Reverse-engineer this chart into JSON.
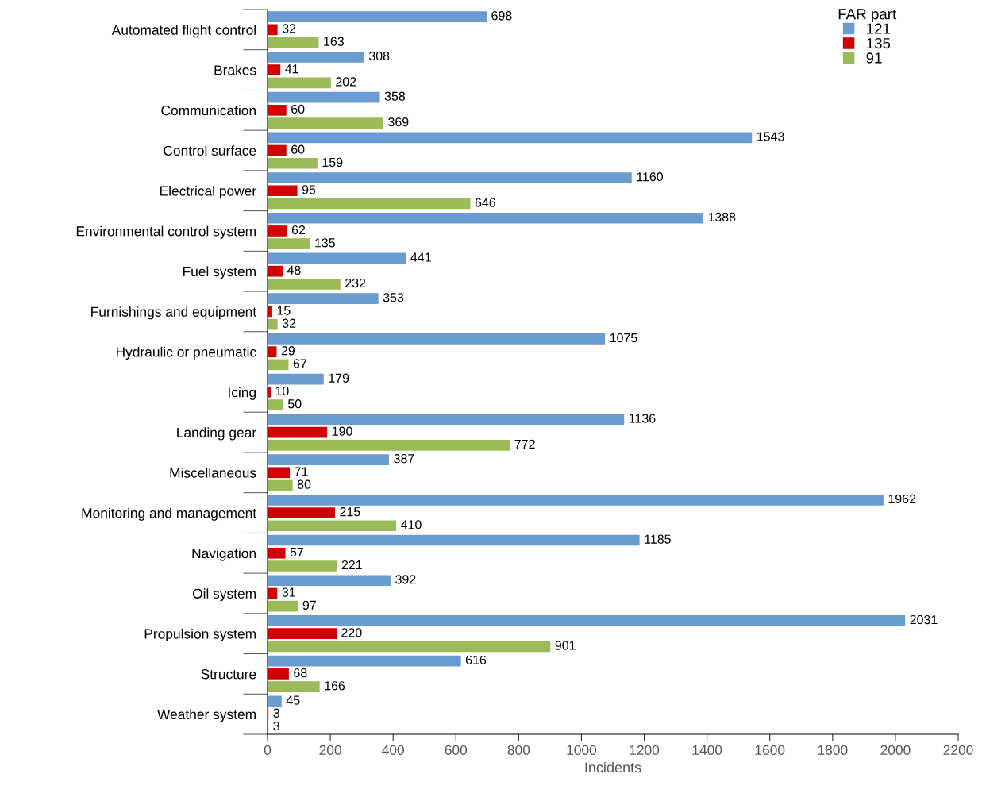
{
  "chart_data": {
    "type": "bar",
    "orientation": "horizontal",
    "xlabel": "Incidents",
    "legend_title": "FAR part",
    "legend": "top right",
    "data_labels": true,
    "grid": false,
    "categories": [
      "Automated flight control",
      "Brakes",
      "Communication",
      "Control surface",
      "Electrical power",
      "Environmental control system",
      "Fuel system",
      "Furnishings and equipment",
      "Hydraulic or pneumatic",
      "Icing",
      "Landing gear",
      "Miscellaneous",
      "Monitoring and management",
      "Navigation",
      "Oil system",
      "Propulsion system",
      "Structure",
      "Weather system"
    ],
    "series": [
      {
        "name": "121",
        "color": "#6a9bd1",
        "values": [
          698,
          308,
          358,
          1543,
          1160,
          1388,
          441,
          353,
          1075,
          179,
          1136,
          387,
          1962,
          1185,
          392,
          2031,
          616,
          45
        ]
      },
      {
        "name": "135",
        "color": "#d00000",
        "values": [
          32,
          41,
          60,
          60,
          95,
          62,
          48,
          15,
          29,
          10,
          190,
          71,
          215,
          57,
          31,
          220,
          68,
          3
        ]
      },
      {
        "name": "91",
        "color": "#9bbb59",
        "values": [
          163,
          202,
          369,
          159,
          646,
          135,
          232,
          32,
          67,
          50,
          772,
          80,
          410,
          221,
          97,
          901,
          166,
          3
        ]
      }
    ],
    "xlim": [
      0,
      2200
    ],
    "xticks": [
      0,
      200,
      400,
      600,
      800,
      1000,
      1200,
      1400,
      1600,
      1800,
      2000,
      2200
    ]
  }
}
